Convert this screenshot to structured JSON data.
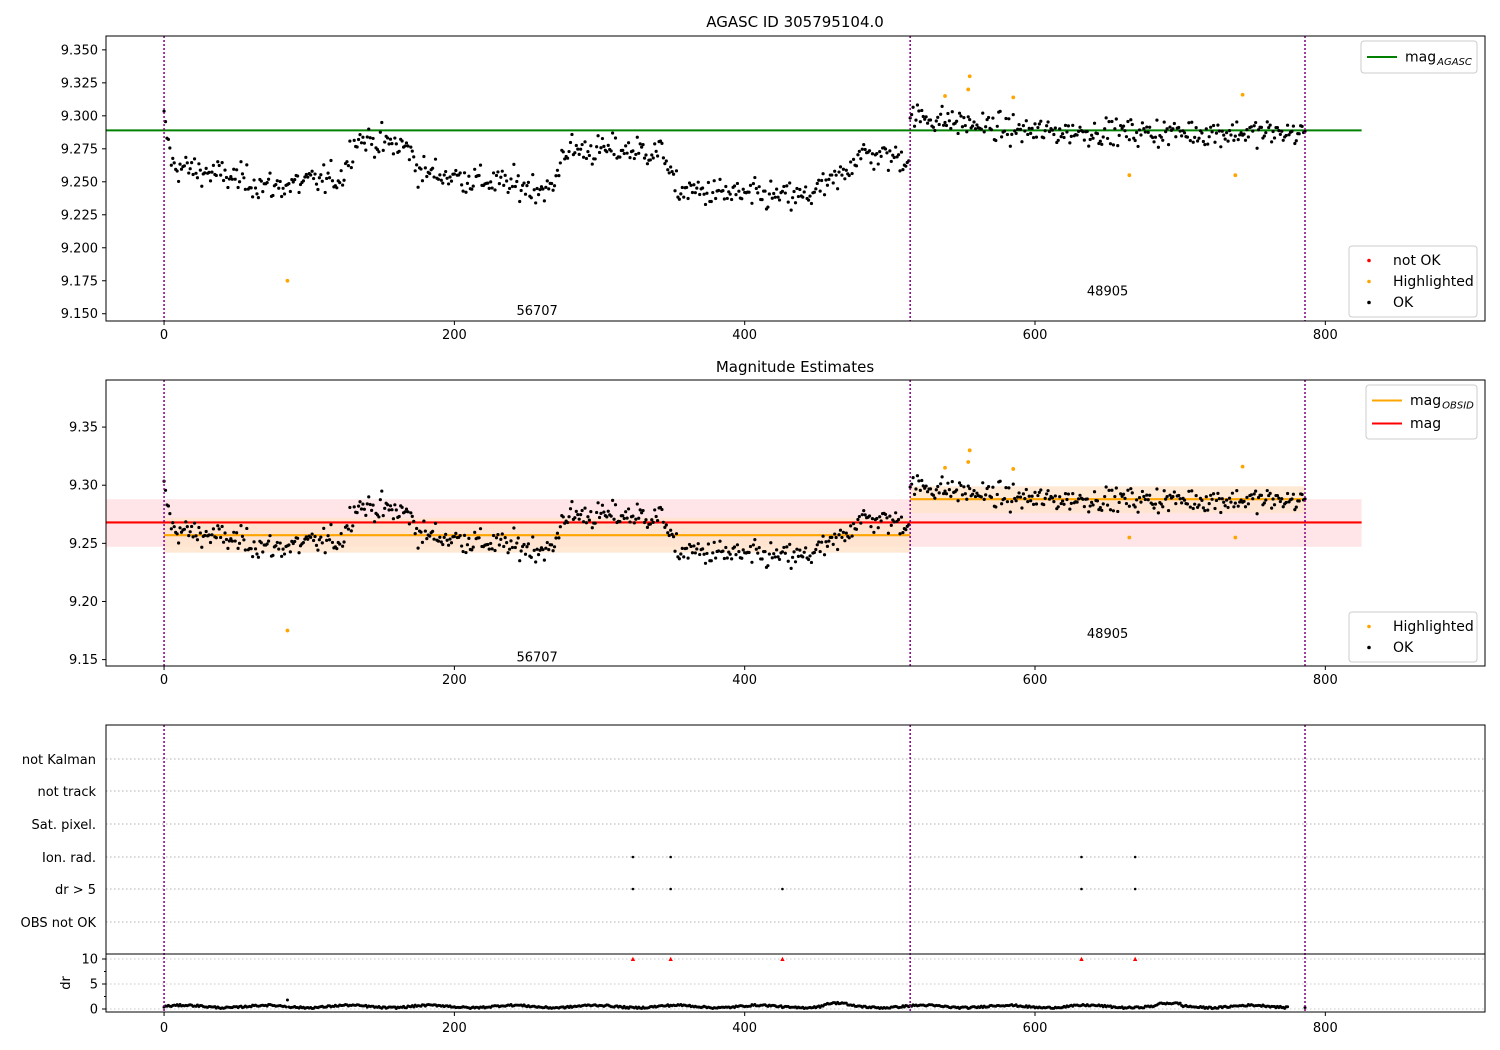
{
  "colors": {
    "ok": "#000000",
    "highlighted": "#ffa500",
    "not_ok": "#ff0000",
    "agasc_line": "#008000",
    "obsid_line": "#ffa500",
    "mag_line": "#ff0000",
    "obs_band": "#ffe0c0",
    "mag_band": "#ffe0e4",
    "obs_boundary": "#800080"
  },
  "chart_data": [
    {
      "type": "scatter",
      "title": "AGASC ID 305795104.0",
      "xlabel": "",
      "ylabel": "",
      "xlim": [
        -40,
        910
      ],
      "ylim": [
        9.1445,
        9.3605
      ],
      "xticks": [
        0,
        200,
        400,
        600,
        800
      ],
      "yticks": [
        9.15,
        9.175,
        9.2,
        9.225,
        9.25,
        9.275,
        9.3,
        9.325,
        9.35
      ],
      "ytick_labels": [
        "9.150",
        "9.175",
        "9.200",
        "9.225",
        "9.250",
        "9.275",
        "9.300",
        "9.325",
        "9.350"
      ],
      "obs_boundaries": [
        0,
        514,
        786
      ],
      "obsid_labels": [
        {
          "text": "56707",
          "x": 257,
          "y": 9.152
        },
        {
          "text": "48905",
          "x": 650,
          "y": 9.167
        }
      ],
      "lines": [
        {
          "name": "mag_AGASC",
          "y": 9.289,
          "x": [
            -40,
            825
          ]
        }
      ],
      "legend_top": [
        {
          "label": "mag",
          "sub": "AGASC",
          "kind": "line",
          "color": "#008000"
        }
      ],
      "legend_bottom": [
        {
          "label": "not OK",
          "kind": "dot",
          "color": "#ff0000"
        },
        {
          "label": "Highlighted",
          "kind": "dot",
          "color": "#ffa500"
        },
        {
          "label": "OK",
          "kind": "dot",
          "color": "#000000"
        }
      ],
      "series": [
        {
          "name": "Highlighted",
          "points": [
            [
              85,
              9.175
            ],
            [
              538,
              9.315
            ],
            [
              554,
              9.32
            ],
            [
              555,
              9.33
            ],
            [
              585,
              9.314
            ],
            [
              665,
              9.255
            ],
            [
              738,
              9.255
            ],
            [
              743,
              9.316
            ]
          ]
        }
      ]
    },
    {
      "type": "scatter",
      "title": "Magnitude Estimates",
      "xlabel": "",
      "ylabel": "",
      "xlim": [
        -40,
        910
      ],
      "ylim": [
        9.1445,
        9.3905
      ],
      "xticks": [
        0,
        200,
        400,
        600,
        800
      ],
      "yticks": [
        9.15,
        9.2,
        9.25,
        9.3,
        9.35
      ],
      "ytick_labels": [
        "9.15",
        "9.20",
        "9.25",
        "9.30",
        "9.35"
      ],
      "obs_boundaries": [
        0,
        514,
        786
      ],
      "obsid_labels": [
        {
          "text": "56707",
          "x": 257,
          "y": 9.152
        },
        {
          "text": "48905",
          "x": 650,
          "y": 9.172
        }
      ],
      "bands": [
        {
          "name": "mag",
          "x": [
            -40,
            825
          ],
          "y": [
            9.247,
            9.288
          ],
          "color": "#ffe0e4"
        },
        {
          "name": "obs1",
          "x": [
            0,
            514
          ],
          "y": [
            9.242,
            9.272
          ],
          "color": "#ffe4cc"
        },
        {
          "name": "obs2",
          "x": [
            514,
            786
          ],
          "y": [
            9.276,
            9.299
          ],
          "color": "#ffe4cc"
        }
      ],
      "segments": [
        {
          "name": "mag_OBSID_56707",
          "x": [
            0,
            514
          ],
          "y": 9.257,
          "color": "#ffa500"
        },
        {
          "name": "mag_OBSID_48905",
          "x": [
            514,
            786
          ],
          "y": 9.288,
          "color": "#ffa500"
        },
        {
          "name": "mag",
          "x": [
            -40,
            825
          ],
          "y": 9.268,
          "color": "#ff0000"
        }
      ],
      "legend_top": [
        {
          "label": "mag",
          "sub": "OBSID",
          "kind": "line",
          "color": "#ffa500"
        },
        {
          "label": "mag",
          "sub": "",
          "kind": "line",
          "color": "#ff0000"
        }
      ],
      "legend_bottom": [
        {
          "label": "Highlighted",
          "kind": "dot",
          "color": "#ffa500"
        },
        {
          "label": "OK",
          "kind": "dot",
          "color": "#000000"
        }
      ],
      "series": [
        {
          "name": "Highlighted",
          "points": [
            [
              85,
              9.175
            ],
            [
              538,
              9.315
            ],
            [
              554,
              9.32
            ],
            [
              555,
              9.33
            ],
            [
              585,
              9.314
            ],
            [
              665,
              9.255
            ],
            [
              738,
              9.255
            ],
            [
              743,
              9.316
            ]
          ]
        }
      ]
    },
    {
      "type": "scatter",
      "title": "",
      "xlim": [
        -40,
        910
      ],
      "flag_rows": [
        "not Kalman",
        "not track",
        "Sat. pixel.",
        "Ion. rad.",
        "dr > 5",
        "OBS not OK"
      ],
      "flag_points": [
        {
          "flag": "Ion. rad.",
          "x": [
            323,
            349,
            632,
            669
          ]
        },
        {
          "flag": "dr > 5",
          "x": [
            323,
            349,
            426,
            632,
            669
          ]
        }
      ],
      "dr": {
        "ylabel": "dr",
        "ylim": [
          -0.6,
          11
        ],
        "yticks": [
          0,
          5,
          10
        ],
        "clip_value": 10,
        "clipped_x": [
          323,
          349,
          426,
          632,
          669
        ],
        "typical_level": 0.5
      },
      "xticks": [
        0,
        200,
        400,
        600,
        800
      ],
      "obs_boundaries": [
        0,
        514,
        786
      ]
    }
  ]
}
